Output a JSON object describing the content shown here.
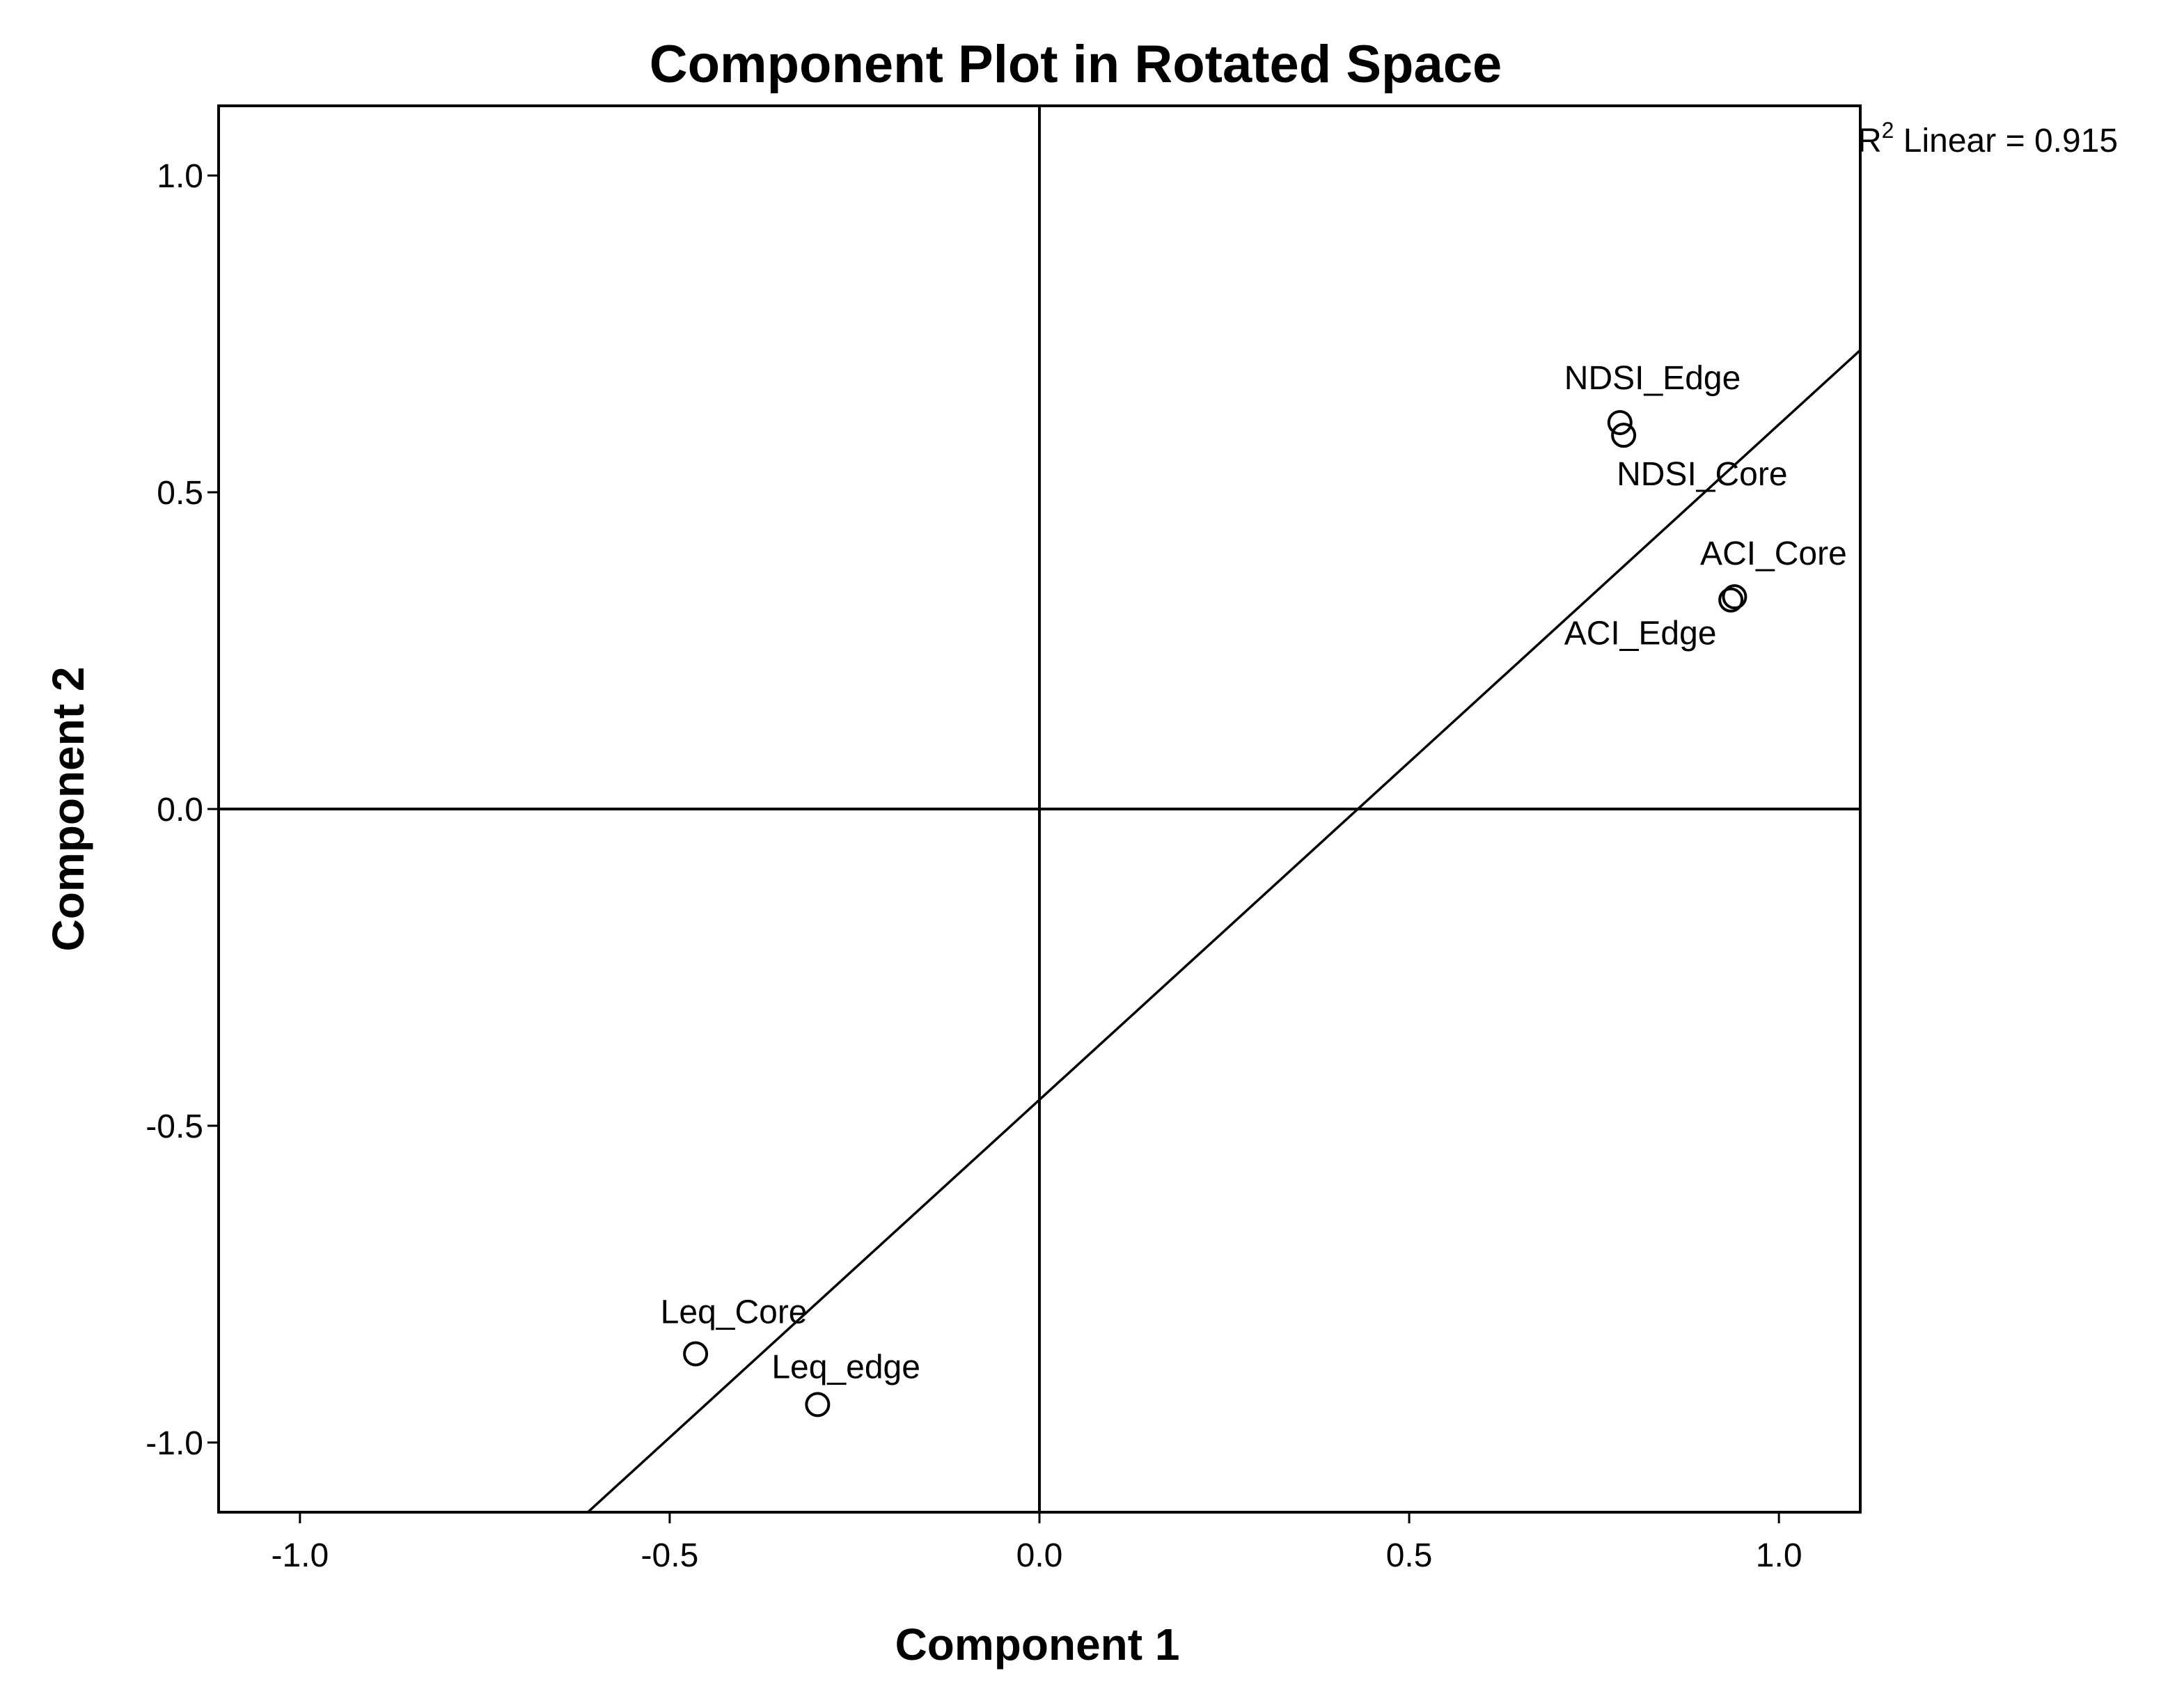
{
  "chart_data": {
    "type": "scatter",
    "title": "Component Plot in Rotated Space",
    "xlabel": "Component 1",
    "ylabel": "Component 2",
    "xlim": [
      -1.11,
      1.11
    ],
    "ylim": [
      -1.11,
      1.11
    ],
    "x_ticks": [
      -1.0,
      -0.5,
      0.0,
      0.5,
      1.0
    ],
    "y_ticks": [
      -1.0,
      -0.5,
      0.0,
      0.5,
      1.0
    ],
    "x_tick_labels": [
      "-1.0",
      "-0.5",
      "0.0",
      "0.5",
      "1.0"
    ],
    "y_tick_labels": [
      "-1.0",
      "-0.5",
      "0.0",
      "0.5",
      "1.0"
    ],
    "grid": false,
    "reference_lines": {
      "x": 0,
      "y": 0
    },
    "points": [
      {
        "label": "NDSI_Edge",
        "x": 0.785,
        "y": 0.61,
        "label_anchor": "above-right"
      },
      {
        "label": "NDSI_Core",
        "x": 0.79,
        "y": 0.59,
        "label_anchor": "below-right"
      },
      {
        "label": "ACI_Core",
        "x": 0.94,
        "y": 0.335,
        "label_anchor": "above"
      },
      {
        "label": "ACI_Edge",
        "x": 0.935,
        "y": 0.33,
        "label_anchor": "below-left"
      },
      {
        "label": "Leq_Core",
        "x": -0.465,
        "y": -0.86,
        "label_anchor": "above"
      },
      {
        "label": "Leq_edge",
        "x": -0.3,
        "y": -0.94,
        "label_anchor": "above-right"
      }
    ],
    "fit_line": {
      "type": "linear",
      "slope": 1.066,
      "intercept": -0.459,
      "r2_text_main": "R",
      "r2_text_sup": "2",
      "r2_text_rest": " Linear = 0.915"
    }
  }
}
